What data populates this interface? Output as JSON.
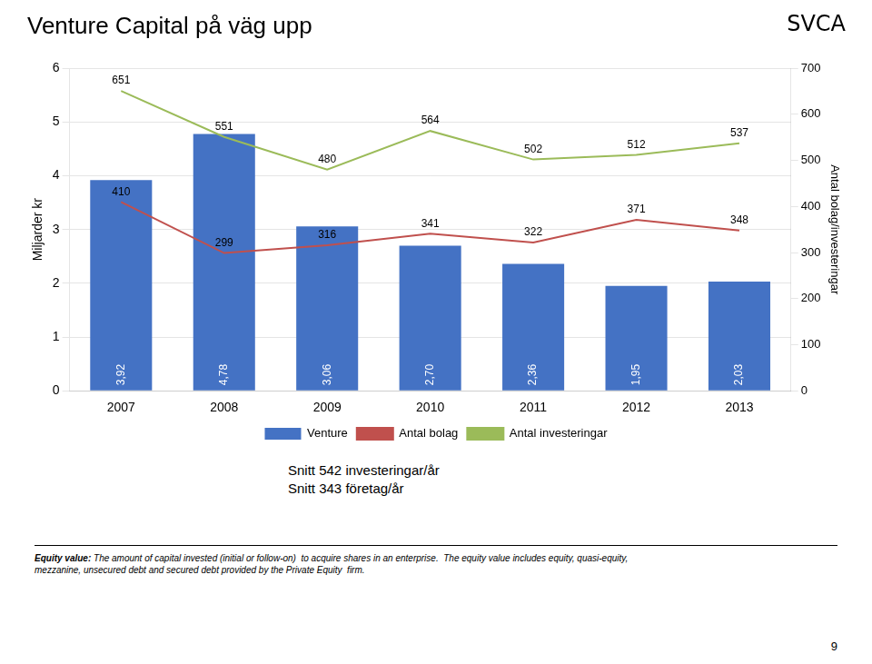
{
  "chart_data": {
    "type": "bar",
    "title": "Venture Capital på väg upp",
    "categories": [
      "2007",
      "2008",
      "2009",
      "2010",
      "2011",
      "2012",
      "2013"
    ],
    "series": [
      {
        "name": "Venture",
        "type": "bar",
        "color": "#4472C4",
        "values": [
          3.92,
          4.78,
          3.06,
          2.7,
          2.36,
          1.95,
          2.03
        ],
        "value_labels": [
          "3,92",
          "4,78",
          "3,06",
          "2,70",
          "2,36",
          "1,95",
          "2,03"
        ]
      },
      {
        "name": "Antal bolag",
        "type": "line",
        "color": "#C0504D",
        "axis": "y2",
        "values": [
          410,
          299,
          316,
          341,
          322,
          371,
          348
        ]
      },
      {
        "name": "Antal investeringar",
        "type": "line",
        "color": "#9BBB59",
        "axis": "y2",
        "values": [
          651,
          551,
          480,
          564,
          502,
          512,
          537
        ]
      }
    ],
    "ylabel": "Miljarder kr",
    "y2label": "Antal bolag/investeringar",
    "ylim": [
      0,
      6
    ],
    "yticks": [
      0,
      1,
      2,
      3,
      4,
      5,
      6
    ],
    "y2lim": [
      0,
      700
    ],
    "y2ticks": [
      0,
      100,
      200,
      300,
      400,
      500,
      600,
      700
    ],
    "grid": true,
    "legend": "bottom",
    "data_labels": true,
    "annotations": [
      "SVCA",
      "Snitt 542 investeringar/år",
      "Snitt 343 företag/år",
      "Equity value:",
      " The amount of capital invested (initial or follow-on)  to acquire shares in an enterprise.  The equity value includes equity, quasi-equity,\nmezzanine, unsecured debt and secured debt provided by the Private Equity  firm.",
      "9"
    ]
  }
}
